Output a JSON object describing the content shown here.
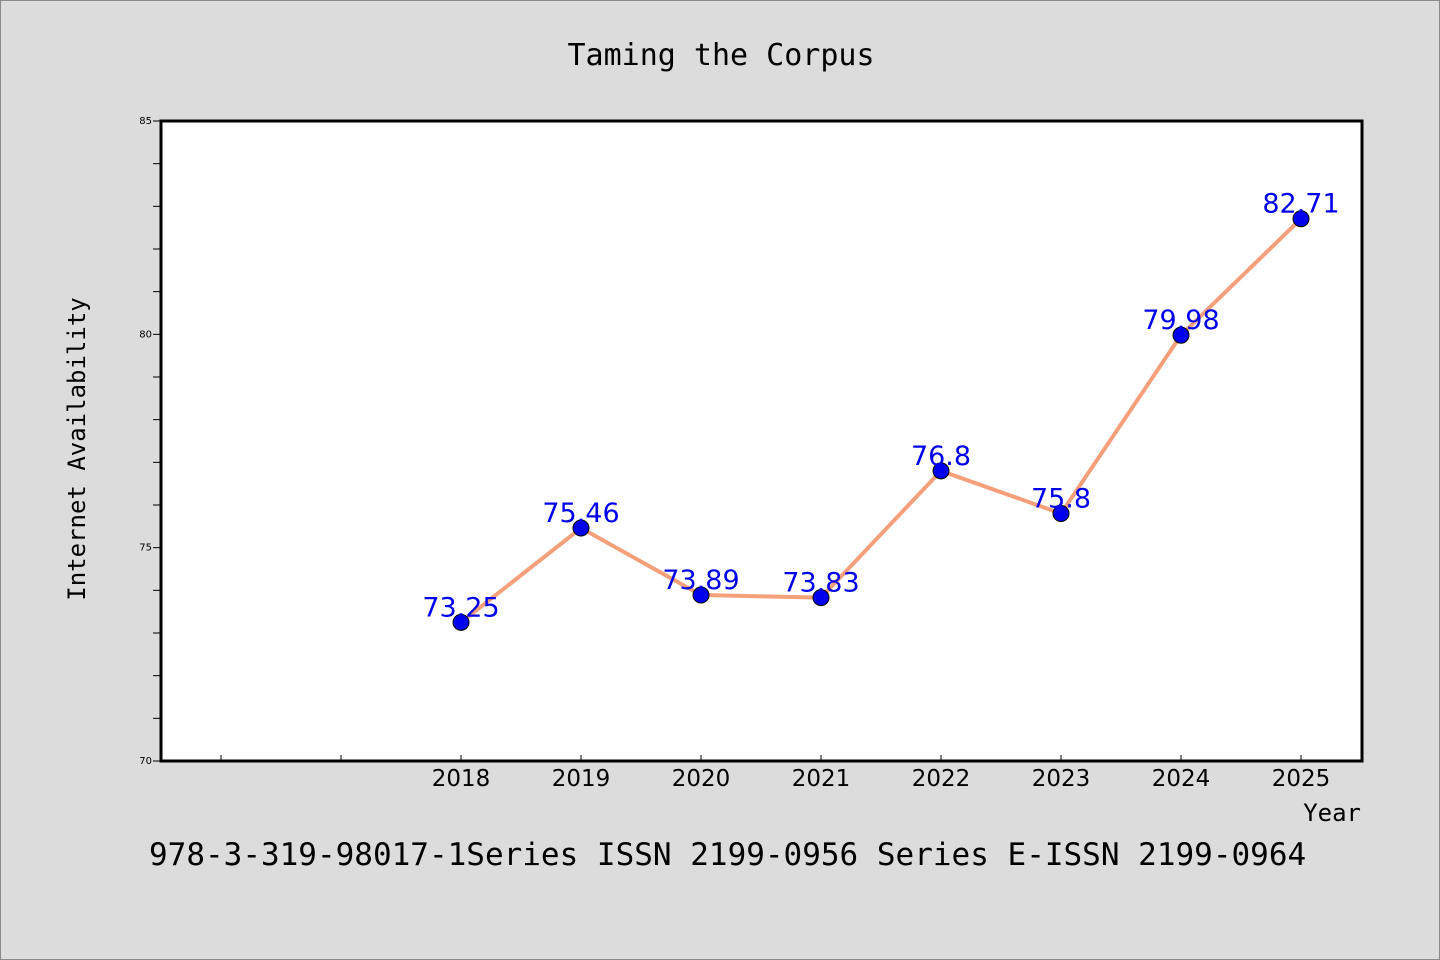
{
  "chart_data": {
    "type": "line",
    "title": "Taming the Corpus",
    "xlabel": "Year",
    "ylabel": "Internet Availability",
    "footer": "978-3-319-98017-1Series ISSN 2199-0956 Series E-ISSN 2199-0964",
    "x": [
      "2018",
      "2019",
      "2020",
      "2021",
      "2022",
      "2023",
      "2024",
      "2025"
    ],
    "series": [
      {
        "values": [
          73.25,
          75.46,
          73.89,
          73.83,
          76.8,
          75.8,
          79.98,
          82.71
        ],
        "data_labels": [
          "73.25",
          "75.46",
          "73.89",
          "73.83",
          "76.8",
          "75.8",
          "79.98",
          "82.71"
        ],
        "line_color": "#f5a07a",
        "marker_color": "#0000ee",
        "label_color": "#0000ee"
      }
    ],
    "ylim": [
      70,
      85
    ],
    "y_ticks": [
      "70",
      "75",
      "80",
      "85"
    ],
    "grid": false,
    "background": "#dcdcdc",
    "plot_background": "#ffffff"
  }
}
